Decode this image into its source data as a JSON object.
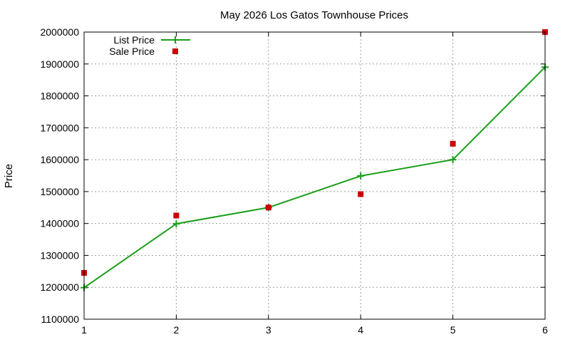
{
  "chart_data": {
    "type": "line",
    "title": "May 2026 Los Gatos Townhouse Prices",
    "xlabel": "",
    "ylabel": "Price",
    "xlim": [
      1,
      6
    ],
    "ylim": [
      1100000,
      2000000
    ],
    "xticks": [
      1,
      2,
      3,
      4,
      5,
      6
    ],
    "yticks": [
      1100000,
      1200000,
      1300000,
      1400000,
      1500000,
      1600000,
      1700000,
      1800000,
      1900000,
      2000000
    ],
    "grid": true,
    "legend": "top-left",
    "series": [
      {
        "name": "List Price",
        "style": "line-with-plus-markers",
        "color": "#1a9e1a",
        "x": [
          1,
          2,
          3,
          4,
          5,
          6
        ],
        "y": [
          1199000,
          1399000,
          1450000,
          1549000,
          1600000,
          1890000
        ]
      },
      {
        "name": "Sale Price",
        "style": "square-points",
        "color": "#cc0000",
        "x": [
          1,
          2,
          3,
          4,
          5,
          6
        ],
        "y": [
          1245000,
          1425000,
          1450000,
          1492000,
          1650000,
          2000000
        ]
      }
    ]
  }
}
